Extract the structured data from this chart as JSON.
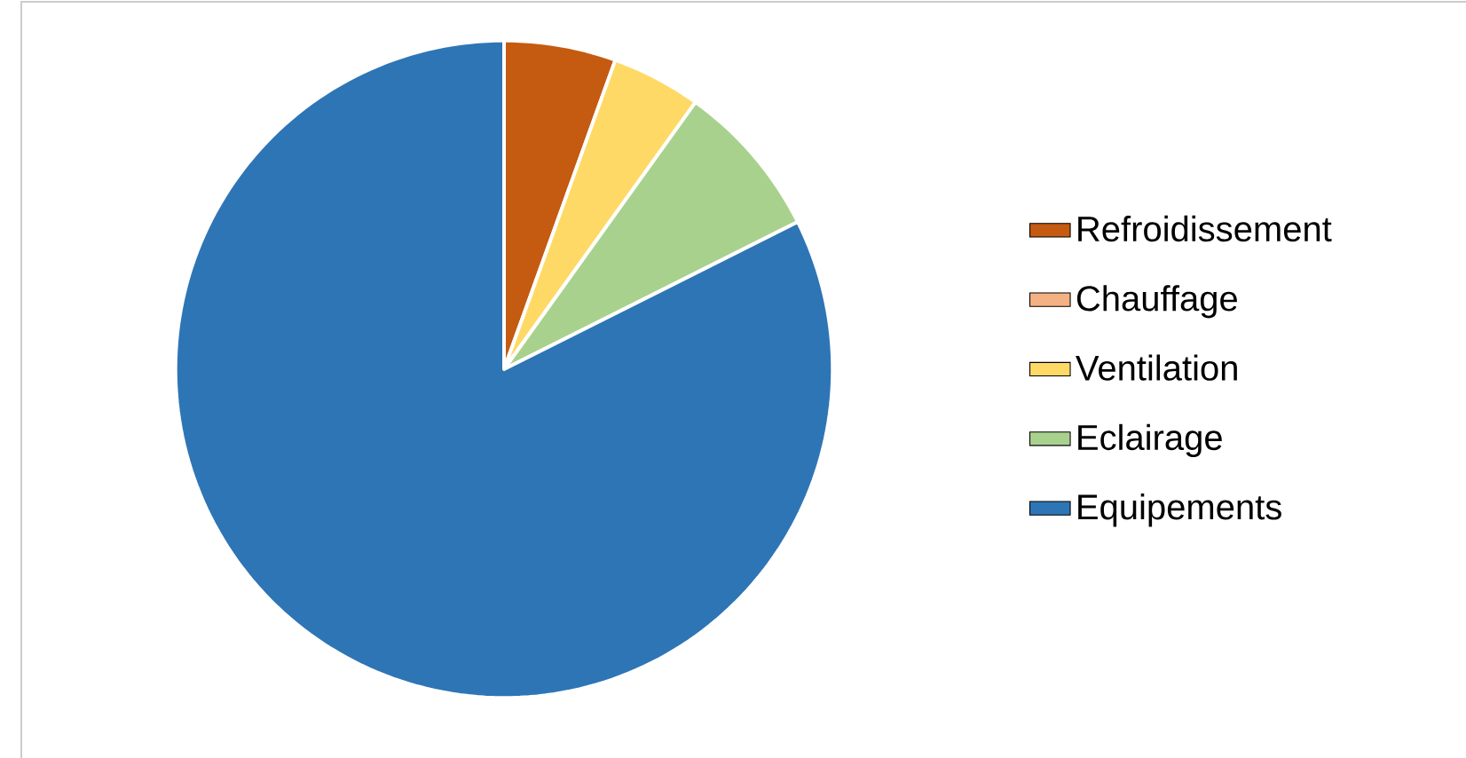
{
  "chart_data": {
    "type": "pie",
    "categories": [
      "Refroidissement",
      "Chauffage",
      "Ventilation",
      "Eclairage",
      "Equipements"
    ],
    "values": [
      5.5,
      0,
      4.4,
      7.7,
      82.4
    ],
    "colors": [
      "#c55a11",
      "#f4b183",
      "#ffd966",
      "#a9d18e",
      "#2e75b6"
    ],
    "legend": "right"
  }
}
